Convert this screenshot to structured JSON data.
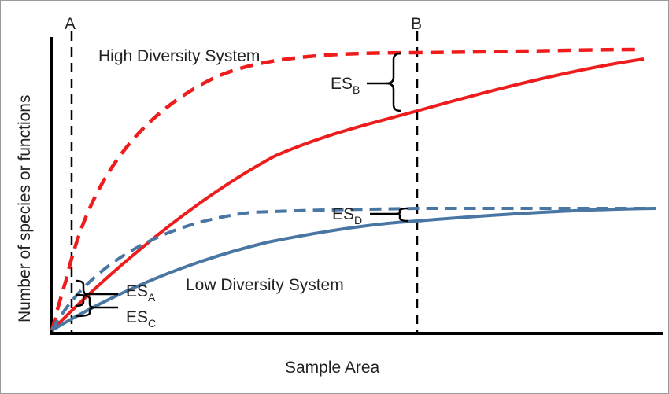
{
  "axes": {
    "y_label": "Number of species or functions",
    "x_label": "Sample Area"
  },
  "markers": {
    "a_label": "A",
    "b_label": "B"
  },
  "systems": {
    "high": "High Diversity System",
    "low": "Low Diversity System"
  },
  "effect_sizes": {
    "a": {
      "base": "ES",
      "sub": "A"
    },
    "b": {
      "base": "ES",
      "sub": "B"
    },
    "c": {
      "base": "ES",
      "sub": "C"
    },
    "d": {
      "base": "ES",
      "sub": "D"
    }
  },
  "colors": {
    "high_curve": "#ee1c1c",
    "low_curve": "#4a76a4",
    "axis": "#000000"
  }
}
